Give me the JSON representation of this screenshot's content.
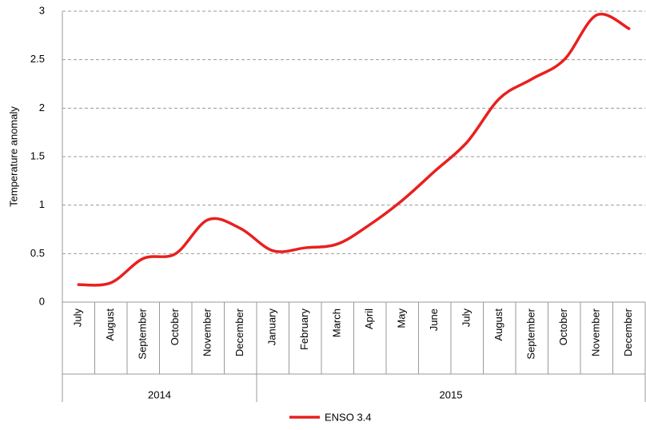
{
  "chart_data": {
    "type": "line",
    "y_axis_label": "Temperature anomaly",
    "categories": [
      "July",
      "August",
      "September",
      "October",
      "November",
      "December",
      "January",
      "February",
      "March",
      "April",
      "May",
      "June",
      "July",
      "August",
      "September",
      "October",
      "November",
      "December"
    ],
    "groups": [
      "2014",
      "2015"
    ],
    "series": [
      {
        "name": "ENSO 3.4",
        "color": "#e8201f",
        "values": [
          0.18,
          0.2,
          0.45,
          0.5,
          0.85,
          0.76,
          0.53,
          0.56,
          0.6,
          0.8,
          1.05,
          1.35,
          1.65,
          2.1,
          2.3,
          2.5,
          2.96,
          2.82
        ]
      }
    ],
    "ylim": [
      0,
      3
    ],
    "yticks": [
      0,
      0.5,
      1,
      1.5,
      2,
      2.5,
      3
    ],
    "grid": true,
    "legend": "bottom"
  }
}
